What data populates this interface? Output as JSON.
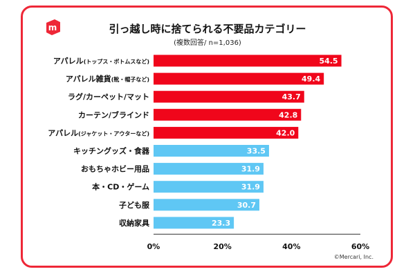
{
  "title": "引っ越し時に捨てられる不要品カテゴリー",
  "subtitle": "(複数回答/ n=1,036)",
  "credit": "©Mercari, Inc.",
  "logo_letter": "m",
  "colors": {
    "border": "#ee2737",
    "red_bar": "#f0061b",
    "blue_bar": "#5fc7f4",
    "brand": "#ee2737"
  },
  "chart_data": {
    "type": "bar",
    "orientation": "horizontal",
    "title": "引っ越し時に捨てられる不要品カテゴリー",
    "subtitle": "(複数回答/ n=1,036)",
    "categories": [
      "アパレル(トップス・ボトムスなど)",
      "アパレル雑貨(靴・帽子など)",
      "ラグ/カーペット/マット",
      "カーテン/ブラインド",
      "アパレル(ジャケット・アウターなど)",
      "キッチングッズ・食器",
      "おもちゃホビー用品",
      "本・CD・ゲーム",
      "子ども服",
      "収納家具"
    ],
    "values": [
      54.5,
      49.4,
      43.7,
      42.8,
      42.0,
      33.5,
      31.9,
      31.9,
      30.7,
      23.3
    ],
    "value_labels": [
      "54.5",
      "49.4",
      "43.7",
      "42.8",
      "42.0",
      "33.5",
      "31.9",
      "31.9",
      "30.7",
      "23.3"
    ],
    "highlight_top_n": 5,
    "xlim": [
      0,
      60
    ],
    "xticks": [
      "0%",
      "20%",
      "40%",
      "60%"
    ],
    "xtick_values": [
      0,
      20,
      40,
      60
    ],
    "grid": false
  }
}
